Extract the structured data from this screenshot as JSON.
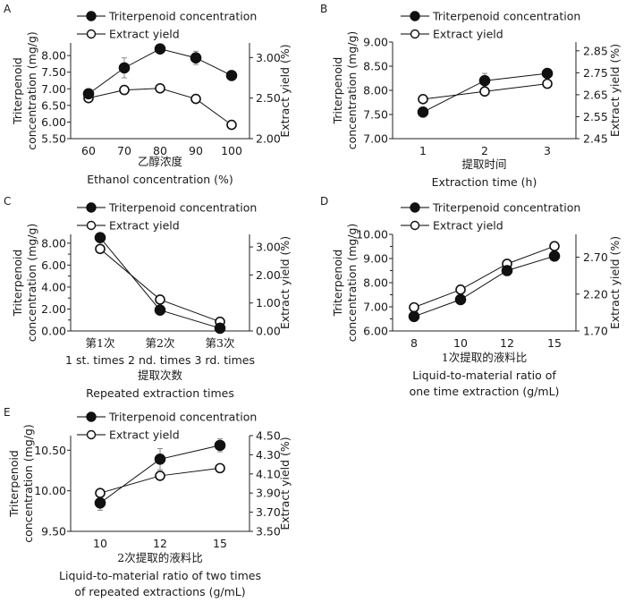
{
  "figure": {
    "description": "Single-factor extraction experiments: triterpenoid concentration and extract yield"
  },
  "chart_data": [
    {
      "id": "A",
      "type": "line",
      "panel_label": "A",
      "legend": [
        "Triterpenoid concentration",
        "Extract yield"
      ],
      "legend_position": "top",
      "categories": [
        "60",
        "70",
        "80",
        "90",
        "100"
      ],
      "xlabel_cn": "乙醇浓度",
      "xlabel": [
        "Ethanol concentration (%)"
      ],
      "ylabel_left": [
        "Triterpenoid",
        "concentration (mg/g)"
      ],
      "ylabel_right": "Extract yield (%)",
      "ylim_left": [
        5.5,
        8.38
      ],
      "yticks_left": [
        "5.50",
        "6.00",
        "6.50",
        "7.00",
        "7.50",
        "8.00"
      ],
      "ylim_right": [
        2.0,
        3.18
      ],
      "yticks_right": [
        "2.00",
        "2.50",
        "3.00"
      ],
      "grid": false,
      "series": [
        {
          "name": "Triterpenoid concentration",
          "axis": "left",
          "marker": "filled",
          "values": [
            6.85,
            7.63,
            8.2,
            7.93,
            7.4
          ],
          "errors": [
            0.05,
            0.3,
            0.1,
            0.2,
            0.08
          ]
        },
        {
          "name": "Extract yield",
          "axis": "right",
          "marker": "open",
          "values": [
            2.5,
            2.6,
            2.62,
            2.49,
            2.17
          ],
          "errors": [
            0.02,
            0.03,
            0.02,
            0.02,
            0.02
          ]
        }
      ]
    },
    {
      "id": "B",
      "type": "line",
      "panel_label": "B",
      "legend": [
        "Triterpenoid concentration",
        "Extract yield"
      ],
      "legend_position": "top",
      "categories": [
        "1",
        "2",
        "3"
      ],
      "xlabel_cn": "提取时间",
      "xlabel": [
        "Extraction time (h)"
      ],
      "ylabel_left": [
        "Triterpenoid",
        "concentration (mg/g)"
      ],
      "ylabel_right": "Extract yield (%)",
      "ylim_left": [
        7.0,
        9.0
      ],
      "yticks_left": [
        "7.00",
        "7.50",
        "8.00",
        "8.50",
        "9.00"
      ],
      "ylim_right": [
        2.45,
        2.89
      ],
      "yticks_right": [
        "2.45",
        "2.55",
        "2.65",
        "2.75",
        "2.85"
      ],
      "grid": false,
      "series": [
        {
          "name": "Triterpenoid concentration",
          "axis": "left",
          "marker": "filled",
          "values": [
            7.55,
            8.2,
            8.35
          ],
          "errors": [
            0.1,
            0.15,
            0.05
          ]
        },
        {
          "name": "Extract yield",
          "axis": "right",
          "marker": "open",
          "values": [
            2.63,
            2.665,
            2.7
          ],
          "errors": [
            0.01,
            0.012,
            0.015
          ]
        }
      ]
    },
    {
      "id": "C",
      "type": "line",
      "panel_label": "C",
      "legend": [
        "Triterpenoid concentration",
        "Extract yield"
      ],
      "legend_position": "top",
      "categories": [
        "第1次",
        "第2次",
        "第3次"
      ],
      "categories_en": "1 st. times 2 nd. times 3 rd. times",
      "xlabel_cn": "提取次数",
      "xlabel": [
        "Repeated extraction times"
      ],
      "ylabel_left": [
        "Triterpenoid",
        "concentration (mg/g)"
      ],
      "ylabel_right": "Extract yield (%)",
      "ylim_left": [
        0.0,
        8.8
      ],
      "yticks_left": [
        "0.00",
        "2.00",
        "4.00",
        "6.00",
        "8.00"
      ],
      "ylim_right": [
        0.0,
        3.45
      ],
      "yticks_right": [
        "0.00",
        "1.00",
        "2.00",
        "3.00"
      ],
      "grid": false,
      "series": [
        {
          "name": "Triterpenoid concentration",
          "axis": "left",
          "marker": "filled",
          "values": [
            8.5,
            1.9,
            0.25
          ],
          "errors": [
            0,
            0,
            0
          ]
        },
        {
          "name": "Extract yield",
          "axis": "right",
          "marker": "open",
          "values": [
            2.93,
            1.12,
            0.33
          ],
          "errors": [
            0,
            0,
            0
          ]
        }
      ]
    },
    {
      "id": "D",
      "type": "line",
      "panel_label": "D",
      "legend": [
        "Triterpenoid concentration",
        "Extract yield"
      ],
      "legend_position": "top",
      "categories": [
        "8",
        "10",
        "12",
        "15"
      ],
      "xlabel_cn": "1次提取的液料比",
      "xlabel": [
        "Liquid-to-material ratio of",
        "one time extraction (g/mL)"
      ],
      "ylabel_left": [
        "Triterpenoid",
        "concentration (mg/g)"
      ],
      "ylabel_right": "Extract yield (%)",
      "ylim_left": [
        6.0,
        10.0
      ],
      "yticks_left": [
        "6.00",
        "7.00",
        "8.00",
        "9.00",
        "10.00"
      ],
      "ylim_right": [
        1.7,
        3.01
      ],
      "yticks_right": [
        "1.70",
        "2.20",
        "2.70"
      ],
      "grid": false,
      "series": [
        {
          "name": "Triterpenoid concentration",
          "axis": "left",
          "marker": "filled",
          "values": [
            6.6,
            7.3,
            8.5,
            9.1
          ],
          "errors": [
            0,
            0,
            0,
            0
          ]
        },
        {
          "name": "Extract yield",
          "axis": "right",
          "marker": "open",
          "values": [
            2.02,
            2.26,
            2.61,
            2.85
          ],
          "errors": [
            0,
            0,
            0,
            0
          ]
        }
      ]
    },
    {
      "id": "E",
      "type": "line",
      "panel_label": "E",
      "legend": [
        "Triterpenoid concentration",
        "Extract yield"
      ],
      "legend_position": "top",
      "categories": [
        "10",
        "12",
        "15"
      ],
      "xlabel_cn": "2次提取的液料比",
      "xlabel": [
        "Liquid-to-material ratio of two times",
        "of repeated extractions (g/mL)"
      ],
      "ylabel_left": [
        "Triterpenoid",
        "concentration (mg/g)"
      ],
      "ylabel_right": "Extract yield (%)",
      "ylim_left": [
        9.5,
        10.68
      ],
      "yticks_left": [
        "9.50",
        "10.00",
        "10.50"
      ],
      "ylim_right": [
        3.5,
        4.5
      ],
      "yticks_right": [
        "3.50",
        "3.70",
        "3.90",
        "4.10",
        "4.30",
        "4.50"
      ],
      "grid": false,
      "series": [
        {
          "name": "Triterpenoid concentration",
          "axis": "left",
          "marker": "filled",
          "values": [
            9.85,
            10.39,
            10.56
          ],
          "errors": [
            0.09,
            0.13,
            0.08
          ]
        },
        {
          "name": "Extract yield",
          "axis": "right",
          "marker": "open",
          "values": [
            3.9,
            4.08,
            4.16
          ],
          "errors": [
            0.02,
            0.02,
            0.02
          ]
        }
      ]
    }
  ]
}
